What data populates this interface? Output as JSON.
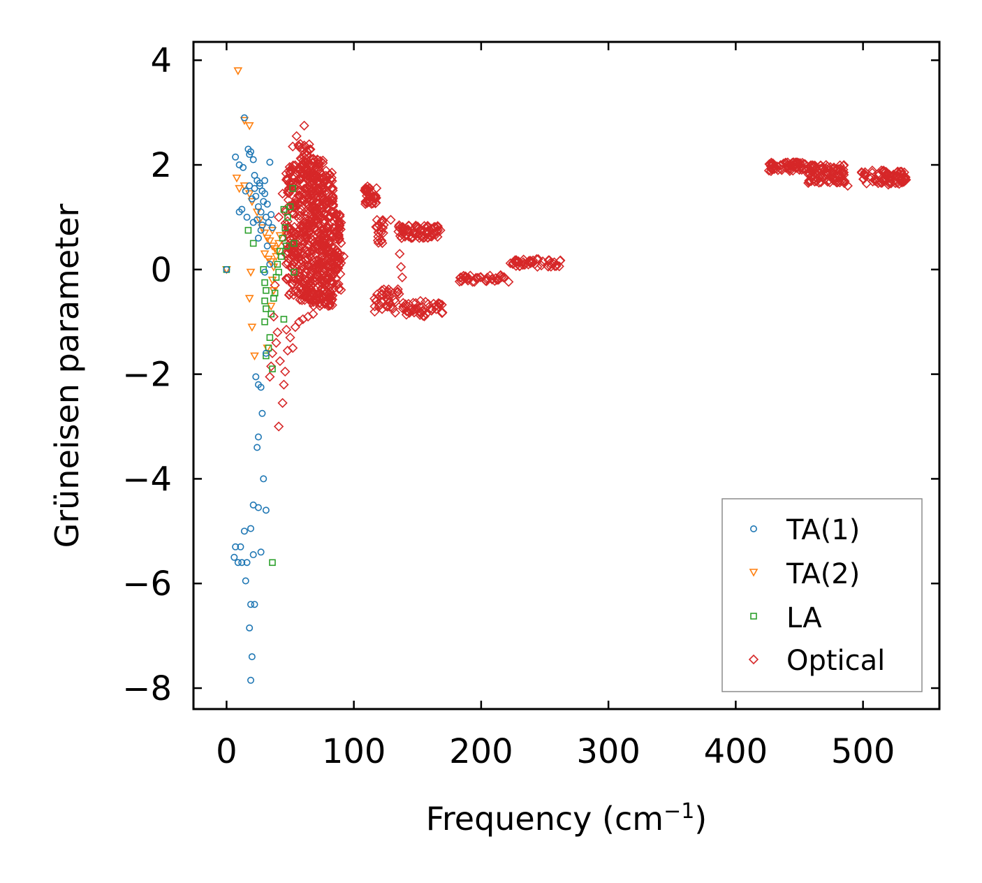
{
  "chart_data": {
    "type": "scatter",
    "title": "",
    "xlabel": "Frequency (cm",
    "xlabel_sup": "−1",
    "xlabel_tail": ")",
    "ylabel": "Grüneisen parameter",
    "xlim": [
      -26,
      560
    ],
    "ylim": [
      -8.4,
      4.35
    ],
    "xticks": [
      0,
      100,
      200,
      300,
      400,
      500
    ],
    "xtick_labels": [
      "0",
      "100",
      "200",
      "300",
      "400",
      "500"
    ],
    "yticks": [
      4,
      2,
      0,
      -2,
      -4,
      -6,
      -8
    ],
    "ytick_labels": [
      "4",
      "2",
      "0",
      "−2",
      "−4",
      "−6",
      "−8"
    ],
    "grid": false,
    "legend_position": "bottom-right",
    "series": [
      {
        "name": "TA(1)",
        "marker": "circle",
        "color": "#1f77b4",
        "points": [
          [
            0,
            0
          ],
          [
            7,
            2.15
          ],
          [
            10,
            2.0
          ],
          [
            13,
            1.95
          ],
          [
            14,
            2.9
          ],
          [
            15,
            1.5
          ],
          [
            17,
            2.3
          ],
          [
            18,
            2.2
          ],
          [
            19,
            2.25
          ],
          [
            21,
            2.1
          ],
          [
            22,
            1.8
          ],
          [
            24,
            1.7
          ],
          [
            26,
            1.6
          ],
          [
            28,
            1.5
          ],
          [
            30,
            1.7
          ],
          [
            34,
            2.05
          ],
          [
            23,
            1.4
          ],
          [
            25,
            1.2
          ],
          [
            27,
            1.1
          ],
          [
            29,
            1.3
          ],
          [
            31,
            1.0
          ],
          [
            33,
            0.9
          ],
          [
            35,
            1.05
          ],
          [
            32,
            1.25
          ],
          [
            36,
            0.8
          ],
          [
            20,
            1.35
          ],
          [
            24,
            0.95
          ],
          [
            28,
            0.85
          ],
          [
            30,
            1.45
          ],
          [
            26,
            1.65
          ],
          [
            22,
            1.55
          ],
          [
            18,
            1.6
          ],
          [
            12,
            1.15
          ],
          [
            10,
            1.1
          ],
          [
            16,
            1.0
          ],
          [
            21,
            0.9
          ],
          [
            25,
            0.6
          ],
          [
            27,
            0.75
          ],
          [
            32,
            0.45
          ],
          [
            34,
            0.1
          ],
          [
            30,
            -0.05
          ],
          [
            31,
            -1.6
          ],
          [
            23,
            -2.05
          ],
          [
            25,
            -2.2
          ],
          [
            27,
            -2.25
          ],
          [
            28,
            -2.75
          ],
          [
            25,
            -3.2
          ],
          [
            24,
            -3.4
          ],
          [
            29,
            -4.0
          ],
          [
            21,
            -4.5
          ],
          [
            25,
            -4.55
          ],
          [
            31,
            -4.6
          ],
          [
            14,
            -5.0
          ],
          [
            19,
            -4.95
          ],
          [
            7,
            -5.3
          ],
          [
            11,
            -5.3
          ],
          [
            6,
            -5.5
          ],
          [
            12,
            -5.6
          ],
          [
            9,
            -5.6
          ],
          [
            16,
            -5.6
          ],
          [
            21,
            -5.45
          ],
          [
            27,
            -5.4
          ],
          [
            15,
            -5.95
          ],
          [
            19,
            -6.4
          ],
          [
            22,
            -6.4
          ],
          [
            18,
            -6.85
          ],
          [
            20,
            -7.4
          ],
          [
            19,
            -7.85
          ]
        ]
      },
      {
        "name": "TA(2)",
        "marker": "triangle-down",
        "color": "#ff7f0e",
        "points": [
          [
            0,
            0
          ],
          [
            9,
            3.8
          ],
          [
            14,
            2.85
          ],
          [
            18,
            2.75
          ],
          [
            8,
            1.75
          ],
          [
            10,
            1.55
          ],
          [
            14,
            1.6
          ],
          [
            18,
            1.45
          ],
          [
            20,
            1.3
          ],
          [
            24,
            1.1
          ],
          [
            26,
            0.95
          ],
          [
            28,
            0.8
          ],
          [
            30,
            0.7
          ],
          [
            32,
            0.6
          ],
          [
            34,
            0.55
          ],
          [
            36,
            0.45
          ],
          [
            38,
            0.4
          ],
          [
            40,
            0.35
          ],
          [
            33,
            0.2
          ],
          [
            35,
            0.15
          ],
          [
            37,
            0.05
          ],
          [
            39,
            0.25
          ],
          [
            41,
            0.5
          ],
          [
            30,
            0.3
          ],
          [
            36,
            0.75
          ],
          [
            42,
            0.65
          ],
          [
            19,
            -0.05
          ],
          [
            18,
            -0.55
          ],
          [
            36,
            -0.2
          ],
          [
            35,
            -0.7
          ],
          [
            37,
            -0.4
          ],
          [
            20,
            -1.1
          ],
          [
            22,
            -1.65
          ],
          [
            32,
            -1.5
          ]
        ]
      },
      {
        "name": "LA",
        "marker": "square",
        "color": "#2ca02c",
        "points": [
          [
            0,
            0
          ],
          [
            17,
            0.75
          ],
          [
            21,
            0.5
          ],
          [
            29,
            0.0
          ],
          [
            30,
            -0.25
          ],
          [
            31,
            -0.4
          ],
          [
            30,
            -0.6
          ],
          [
            31,
            -0.75
          ],
          [
            30,
            -1.0
          ],
          [
            34,
            -1.3
          ],
          [
            33,
            -1.5
          ],
          [
            31,
            -1.65
          ],
          [
            36,
            -1.9
          ],
          [
            37,
            -0.55
          ],
          [
            35,
            -0.85
          ],
          [
            38,
            -0.45
          ],
          [
            39,
            -0.15
          ],
          [
            40,
            0.1
          ],
          [
            42,
            0.35
          ],
          [
            44,
            0.6
          ],
          [
            46,
            0.8
          ],
          [
            48,
            1.0
          ],
          [
            50,
            1.2
          ],
          [
            52,
            1.55
          ],
          [
            45,
            1.15
          ],
          [
            47,
            0.45
          ],
          [
            43,
            0.25
          ],
          [
            41,
            -0.05
          ],
          [
            45,
            -0.95
          ],
          [
            53,
            -0.05
          ],
          [
            53,
            0.5
          ],
          [
            36,
            -5.6
          ]
        ]
      },
      {
        "name": "Optical",
        "marker": "diamond",
        "color": "#d62728",
        "clouds": [
          {
            "x0": 46,
            "x1": 56,
            "ymin": -0.5,
            "ymax": 2.0,
            "n": 120
          },
          {
            "x0": 56,
            "x1": 66,
            "ymin": -0.6,
            "ymax": 2.4,
            "n": 200
          },
          {
            "x0": 66,
            "x1": 76,
            "ymin": -0.7,
            "ymax": 2.2,
            "n": 220
          },
          {
            "x0": 76,
            "x1": 84,
            "ymin": -0.7,
            "ymax": 1.9,
            "n": 150
          },
          {
            "x0": 84,
            "x1": 90,
            "ymin": -0.4,
            "ymax": 1.2,
            "n": 60
          },
          {
            "x0": 108,
            "x1": 118,
            "ymin": 1.25,
            "ymax": 1.6,
            "n": 40
          },
          {
            "x0": 117,
            "x1": 124,
            "ymin": 0.5,
            "ymax": 0.95,
            "n": 22
          },
          {
            "x0": 134,
            "x1": 167,
            "ymin": 0.6,
            "ymax": 0.85,
            "n": 70
          },
          {
            "x0": 116,
            "x1": 136,
            "ymin": -0.85,
            "ymax": -0.35,
            "n": 35
          },
          {
            "x0": 138,
            "x1": 170,
            "ymin": -0.9,
            "ymax": -0.6,
            "n": 45
          },
          {
            "x0": 183,
            "x1": 222,
            "ymin": -0.25,
            "ymax": -0.1,
            "n": 40
          },
          {
            "x0": 223,
            "x1": 263,
            "ymin": 0.05,
            "ymax": 0.2,
            "n": 45
          },
          {
            "x0": 426,
            "x1": 455,
            "ymin": 1.88,
            "ymax": 2.05,
            "n": 60
          },
          {
            "x0": 455,
            "x1": 486,
            "ymin": 1.65,
            "ymax": 2.0,
            "n": 90
          },
          {
            "x0": 498,
            "x1": 534,
            "ymin": 1.62,
            "ymax": 1.9,
            "n": 80
          }
        ],
        "points": [
          [
            55,
            2.55
          ],
          [
            61,
            2.75
          ],
          [
            58,
            2.4
          ],
          [
            52,
            2.35
          ],
          [
            44,
            1.45
          ],
          [
            41,
            1.0
          ],
          [
            38,
            -0.3
          ],
          [
            37,
            -0.9
          ],
          [
            40,
            -1.2
          ],
          [
            39,
            -1.4
          ],
          [
            36,
            -1.6
          ],
          [
            35,
            -1.85
          ],
          [
            34,
            -2.05
          ],
          [
            42,
            -1.75
          ],
          [
            46,
            -1.95
          ],
          [
            45,
            -2.2
          ],
          [
            44,
            -2.55
          ],
          [
            41,
            -3.0
          ],
          [
            48,
            -1.55
          ],
          [
            52,
            -1.5
          ],
          [
            50,
            -1.3
          ],
          [
            47,
            -1.15
          ],
          [
            54,
            -1.1
          ],
          [
            57,
            -1.0
          ],
          [
            60,
            -0.95
          ],
          [
            64,
            -0.9
          ],
          [
            68,
            -0.85
          ],
          [
            92,
            0.25
          ],
          [
            129,
            0.95
          ],
          [
            136,
            0.3
          ],
          [
            137,
            0.05
          ],
          [
            138,
            -0.15
          ],
          [
            161,
            0.78
          ],
          [
            168,
            0.75
          ],
          [
            122,
            -0.4
          ],
          [
            488,
            1.6
          ],
          [
            484,
            1.72
          ]
        ]
      }
    ]
  }
}
